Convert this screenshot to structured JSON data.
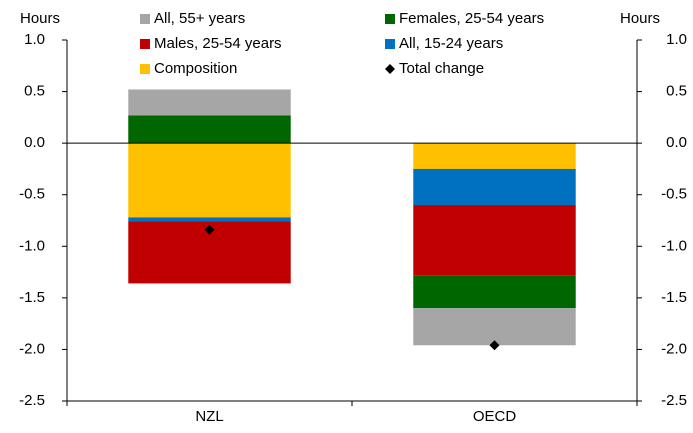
{
  "chart_data": {
    "type": "stacked_bar",
    "y_label": "Hours",
    "y2_label": "Hours",
    "categories": [
      "NZL",
      "OECD"
    ],
    "series": [
      {
        "name": "Composition",
        "color": "#ffc000",
        "values": [
          -0.72,
          -0.25
        ]
      },
      {
        "name": "All, 15-24 years",
        "color": "#0070c0",
        "values": [
          -0.04,
          -0.35
        ]
      },
      {
        "name": "Males, 25-54 years",
        "color": "#c00000",
        "values": [
          -0.6,
          -0.68
        ]
      },
      {
        "name": "Females, 25-54 years",
        "color": "#006600",
        "values": [
          0.27,
          -0.32
        ]
      },
      {
        "name": "All, 55+ years",
        "color": "#a6a6a6",
        "values": [
          0.25,
          -0.36
        ]
      }
    ],
    "total_change": {
      "name": "Total change",
      "color": "#000000",
      "values": [
        -0.84,
        -1.96
      ]
    },
    "ylim": [
      -2.5,
      1
    ],
    "y2lim": [
      -2.5,
      1
    ],
    "yticks": [
      {
        "value": 1,
        "label": "1.0"
      },
      0.5,
      {
        "value": 0,
        "label": "0.0"
      },
      -0.5,
      {
        "value": -1,
        "label": "-1.0"
      },
      -1.5,
      {
        "value": -2,
        "label": "-2.0"
      },
      -2.5
    ],
    "y2ticks": [
      {
        "value": 1,
        "label": "1.0"
      },
      0.5,
      {
        "value": 0,
        "label": "0.0"
      },
      -0.5,
      {
        "value": -1,
        "label": "-1.0"
      },
      -1.5,
      {
        "value": -2,
        "label": "-2.0"
      },
      -2.5
    ]
  }
}
